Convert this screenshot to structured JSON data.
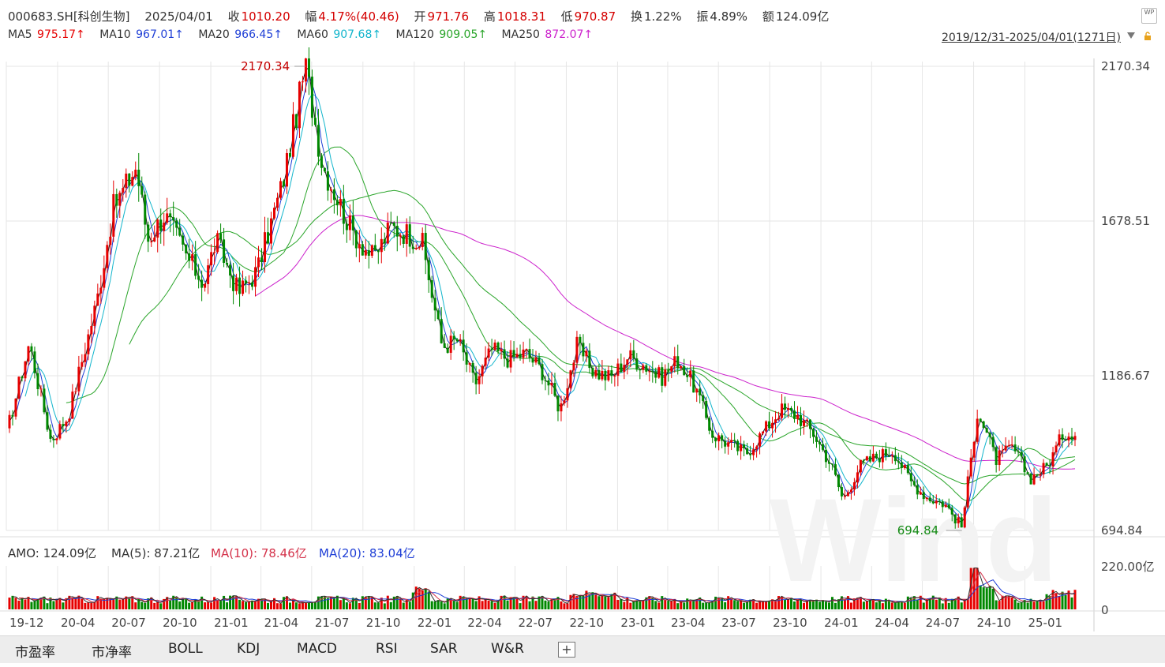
{
  "header": {
    "code": "000683.SH[科创生物]",
    "date": "2025/04/01",
    "close_label": "收",
    "close": "1010.20",
    "change_label": "幅",
    "change": "4.17%(40.46)",
    "open_label": "开",
    "open": "971.76",
    "high_label": "高",
    "high": "1018.31",
    "low_label": "低",
    "low": "970.87",
    "turnover_label": "换",
    "turnover": "1.22%",
    "amplitude_label": "振",
    "amplitude": "4.89%",
    "amount_label": "额",
    "amount": "124.09亿"
  },
  "ma_row": {
    "ma5_label": "MA5",
    "ma5": "975.17↑",
    "ma10_label": "MA10",
    "ma10": "967.01↑",
    "ma20_label": "MA20",
    "ma20": "966.45↑",
    "ma60_label": "MA60",
    "ma60": "907.68↑",
    "ma120_label": "MA120",
    "ma120": "909.05↑",
    "ma250_label": "MA250",
    "ma250": "872.07↑"
  },
  "range_text": "2019/12/31-2025/04/01(1271日)",
  "badge_text": "WP",
  "volume_header": {
    "amo": "AMO: 124.09亿",
    "ma5": "MA(5): 87.21亿",
    "ma10": "MA(10): 78.46亿",
    "ma20": "MA(20): 83.04亿"
  },
  "watermark": "Wind",
  "tabs": [
    "市盈率",
    "市净率",
    "BOLL",
    "KDJ",
    "MACD",
    "RSI",
    "SAR",
    "W&R"
  ],
  "tab_add": "+",
  "colors": {
    "up": "#e60000",
    "down": "#008800",
    "ma5": "#1a1a1a",
    "ma10": "#1f3fd6",
    "ma20": "#12b5cc",
    "ma60": "#2aa52a",
    "ma120": "#2aa52a",
    "ma250": "#cc22cc",
    "grid": "#e6e6e6",
    "axis_text": "#444444",
    "vol_ma5": "#333333",
    "vol_ma10": "#d4324a",
    "vol_ma20": "#1f3fd6"
  },
  "chart_data": {
    "type": "candlestick",
    "y_axis_labels": [
      "2170.34",
      "1678.51",
      "1186.67",
      "694.84"
    ],
    "ylim": [
      694.84,
      2170.34
    ],
    "volume_axis_labels": [
      "220.00亿",
      "0"
    ],
    "volume_ylim": [
      0,
      220
    ],
    "x_ticks": [
      "19-12",
      "20-04",
      "20-07",
      "20-10",
      "21-01",
      "21-04",
      "21-07",
      "21-10",
      "22-01",
      "22-04",
      "22-07",
      "22-10",
      "23-01",
      "23-04",
      "23-07",
      "23-10",
      "24-01",
      "24-04",
      "24-07",
      "24-10",
      "25-01"
    ],
    "annotations": [
      {
        "text": "2170.34",
        "x": "21-06",
        "y": 2170.34
      },
      {
        "text": "694.84",
        "x": "24-09",
        "y": 694.84
      }
    ],
    "close_path_points": [
      {
        "x": "2019-12-31",
        "y": 1000
      },
      {
        "x": "2020-02-10",
        "y": 1290
      },
      {
        "x": "2020-03-20",
        "y": 980
      },
      {
        "x": "2020-04-20",
        "y": 1060
      },
      {
        "x": "2020-06-10",
        "y": 1420
      },
      {
        "x": "2020-07-10",
        "y": 1720
      },
      {
        "x": "2020-08-20",
        "y": 1850
      },
      {
        "x": "2020-09-10",
        "y": 1620
      },
      {
        "x": "2020-10-10",
        "y": 1700
      },
      {
        "x": "2020-11-20",
        "y": 1560
      },
      {
        "x": "2020-12-20",
        "y": 1480
      },
      {
        "x": "2021-01-10",
        "y": 1620
      },
      {
        "x": "2021-02-20",
        "y": 1450
      },
      {
        "x": "2021-03-25",
        "y": 1520
      },
      {
        "x": "2021-05-10",
        "y": 1800
      },
      {
        "x": "2021-06-20",
        "y": 2170
      },
      {
        "x": "2021-07-20",
        "y": 1860
      },
      {
        "x": "2021-09-10",
        "y": 1650
      },
      {
        "x": "2021-10-20",
        "y": 1560
      },
      {
        "x": "2021-11-20",
        "y": 1660
      },
      {
        "x": "2021-12-20",
        "y": 1640
      },
      {
        "x": "2022-01-15",
        "y": 1610
      },
      {
        "x": "2022-02-20",
        "y": 1280
      },
      {
        "x": "2022-03-20",
        "y": 1300
      },
      {
        "x": "2022-04-20",
        "y": 1160
      },
      {
        "x": "2022-05-20",
        "y": 1270
      },
      {
        "x": "2022-06-20",
        "y": 1240
      },
      {
        "x": "2022-07-20",
        "y": 1260
      },
      {
        "x": "2022-08-20",
        "y": 1200
      },
      {
        "x": "2022-09-20",
        "y": 1080
      },
      {
        "x": "2022-10-20",
        "y": 1280
      },
      {
        "x": "2022-11-20",
        "y": 1200
      },
      {
        "x": "2022-12-20",
        "y": 1180
      },
      {
        "x": "2023-01-20",
        "y": 1250
      },
      {
        "x": "2023-02-20",
        "y": 1220
      },
      {
        "x": "2023-03-20",
        "y": 1180
      },
      {
        "x": "2023-04-20",
        "y": 1240
      },
      {
        "x": "2023-05-20",
        "y": 1150
      },
      {
        "x": "2023-06-20",
        "y": 1000
      },
      {
        "x": "2023-07-20",
        "y": 970
      },
      {
        "x": "2023-08-20",
        "y": 940
      },
      {
        "x": "2023-09-20",
        "y": 1010
      },
      {
        "x": "2023-10-20",
        "y": 1080
      },
      {
        "x": "2023-11-20",
        "y": 1060
      },
      {
        "x": "2023-12-20",
        "y": 1000
      },
      {
        "x": "2024-01-20",
        "y": 900
      },
      {
        "x": "2024-02-10",
        "y": 790
      },
      {
        "x": "2024-03-10",
        "y": 900
      },
      {
        "x": "2024-04-10",
        "y": 930
      },
      {
        "x": "2024-05-10",
        "y": 950
      },
      {
        "x": "2024-06-10",
        "y": 850
      },
      {
        "x": "2024-07-10",
        "y": 800
      },
      {
        "x": "2024-08-10",
        "y": 780
      },
      {
        "x": "2024-09-10",
        "y": 705
      },
      {
        "x": "2024-10-08",
        "y": 1080
      },
      {
        "x": "2024-11-10",
        "y": 920
      },
      {
        "x": "2024-12-10",
        "y": 960
      },
      {
        "x": "2025-01-10",
        "y": 860
      },
      {
        "x": "2025-02-10",
        "y": 900
      },
      {
        "x": "2025-03-10",
        "y": 1000
      },
      {
        "x": "2025-04-01",
        "y": 1010
      }
    ]
  }
}
